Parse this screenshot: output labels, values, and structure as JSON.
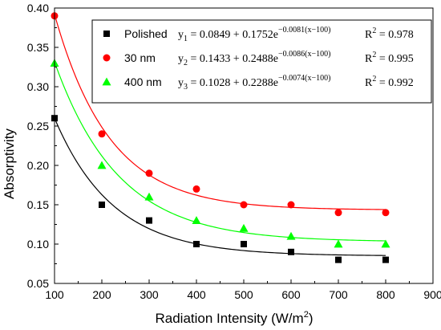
{
  "chart_data": {
    "type": "scatter",
    "xlabel": "Radiation Intensity (W/m",
    "xlabel_sup": "2",
    "xlabel_tail": ")",
    "ylabel": "Absorptivity",
    "xlim": [
      100,
      900
    ],
    "ylim": [
      0.05,
      0.4
    ],
    "x_ticks": [
      "100",
      "200",
      "300",
      "400",
      "500",
      "600",
      "700",
      "800",
      "900"
    ],
    "y_ticks": [
      "0.05",
      "0.10",
      "0.15",
      "0.20",
      "0.25",
      "0.30",
      "0.35",
      "0.40"
    ],
    "x": [
      100,
      200,
      300,
      400,
      500,
      600,
      700,
      800
    ],
    "legend_position": "top-right",
    "series": [
      {
        "name": "Polished",
        "marker": "square",
        "marker_color": "#000000",
        "line_color": "#000000",
        "values": [
          0.26,
          0.15,
          0.13,
          0.1,
          0.1,
          0.09,
          0.08,
          0.08
        ],
        "fit": {
          "a": 0.0849,
          "b": 0.1752,
          "k": 0.0081
        },
        "eq_lhs": "y",
        "eq_sub": "1",
        "eq_rhs": " = 0.0849 + 0.1752e",
        "eq_exp": "−0.0081(x−100)",
        "r2_label": "R",
        "r2_sup": "2",
        "r2_value": " = 0.978"
      },
      {
        "name": "30 nm",
        "marker": "circle",
        "marker_color": "#ff0000",
        "line_color": "#ff0000",
        "values": [
          0.39,
          0.24,
          0.19,
          0.17,
          0.15,
          0.15,
          0.14,
          0.14
        ],
        "fit": {
          "a": 0.1433,
          "b": 0.2488,
          "k": 0.0086
        },
        "eq_lhs": "y",
        "eq_sub": "2",
        "eq_rhs": " = 0.1433 + 0.2488e",
        "eq_exp": "−0.0086(x−100)",
        "r2_label": "R",
        "r2_sup": "2",
        "r2_value": " = 0.995"
      },
      {
        "name": "400 nm",
        "marker": "triangle",
        "marker_color": "#00ff00",
        "line_color": "#00ff00",
        "values": [
          0.33,
          0.2,
          0.16,
          0.13,
          0.12,
          0.11,
          0.1,
          0.1
        ],
        "fit": {
          "a": 0.1028,
          "b": 0.2288,
          "k": 0.0074
        },
        "eq_lhs": "y",
        "eq_sub": "3",
        "eq_rhs": " = 0.1028 + 0.2288e",
        "eq_exp": "−0.0074(x−100)",
        "r2_label": "R",
        "r2_sup": "2",
        "r2_value": " = 0.992"
      }
    ]
  }
}
